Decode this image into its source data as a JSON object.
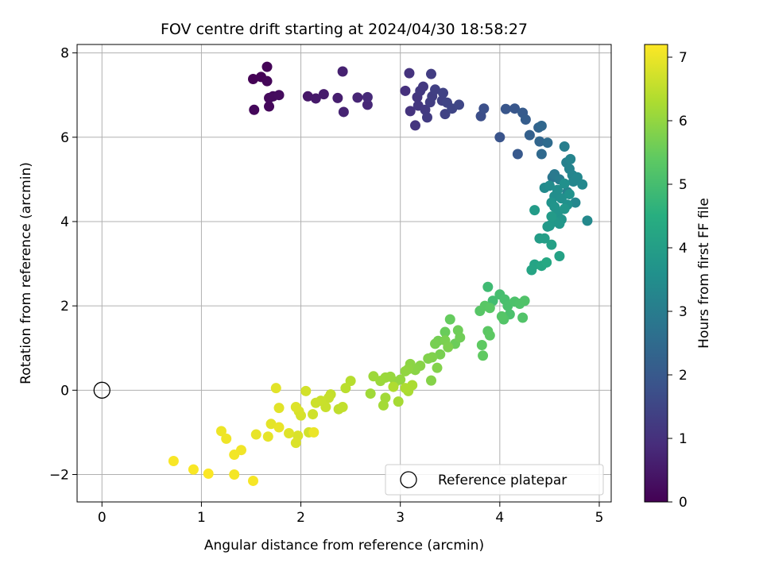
{
  "chart_data": {
    "type": "scatter",
    "title": "FOV centre drift starting at 2024/04/30 18:58:27",
    "xlabel": "Angular distance from reference (arcmin)",
    "ylabel": "Rotation from reference (arcmin)",
    "xlim": [
      -0.25,
      5.12
    ],
    "ylim": [
      -2.65,
      8.2
    ],
    "xticks": [
      0,
      1,
      2,
      3,
      4,
      5
    ],
    "yticks": [
      -2,
      0,
      2,
      4,
      6,
      8
    ],
    "xtick_labels": [
      "0",
      "1",
      "2",
      "3",
      "4",
      "5"
    ],
    "ytick_labels": [
      "−2",
      "0",
      "2",
      "4",
      "6",
      "8"
    ],
    "grid": true,
    "colormap": "viridis",
    "colorbar": {
      "label": "Hours from first FF file",
      "range": [
        0,
        7.2
      ],
      "ticks": [
        0,
        1,
        2,
        3,
        4,
        5,
        6,
        7
      ],
      "tick_labels": [
        "0",
        "1",
        "2",
        "3",
        "4",
        "5",
        "6",
        "7"
      ]
    },
    "legend": {
      "position": "lower-right",
      "label": "Reference platepar"
    },
    "reference_point": {
      "x": 0,
      "y": 0,
      "marker": "open-circle"
    },
    "points": [
      [
        1.52,
        7.38,
        0.02
      ],
      [
        1.6,
        7.43,
        0.05
      ],
      [
        1.66,
        7.67,
        0.08
      ],
      [
        1.66,
        7.33,
        0.1
      ],
      [
        1.53,
        6.65,
        0.13
      ],
      [
        1.68,
        6.73,
        0.15
      ],
      [
        1.68,
        6.93,
        0.18
      ],
      [
        1.72,
        6.97,
        0.2
      ],
      [
        1.78,
        7.0,
        0.23
      ],
      [
        2.07,
        6.97,
        0.45
      ],
      [
        2.15,
        6.92,
        0.5
      ],
      [
        2.23,
        7.02,
        0.55
      ],
      [
        2.37,
        6.93,
        0.6
      ],
      [
        2.42,
        7.56,
        0.65
      ],
      [
        2.43,
        6.6,
        0.7
      ],
      [
        2.57,
        6.94,
        0.75
      ],
      [
        2.67,
        6.77,
        0.8
      ],
      [
        2.67,
        6.95,
        0.85
      ],
      [
        3.05,
        7.1,
        1.0
      ],
      [
        3.09,
        7.52,
        1.05
      ],
      [
        3.1,
        6.62,
        1.08
      ],
      [
        3.15,
        6.28,
        1.1
      ],
      [
        3.17,
        6.95,
        1.12
      ],
      [
        3.18,
        6.75,
        1.15
      ],
      [
        3.2,
        7.1,
        1.18
      ],
      [
        3.23,
        7.2,
        1.2
      ],
      [
        3.25,
        6.65,
        1.22
      ],
      [
        3.27,
        6.47,
        1.25
      ],
      [
        3.3,
        6.83,
        1.28
      ],
      [
        3.31,
        7.5,
        1.3
      ],
      [
        3.32,
        6.97,
        1.32
      ],
      [
        3.35,
        7.13,
        1.35
      ],
      [
        3.42,
        6.87,
        1.38
      ],
      [
        3.43,
        7.05,
        1.4
      ],
      [
        3.45,
        6.55,
        1.42
      ],
      [
        3.47,
        6.82,
        1.45
      ],
      [
        3.52,
        6.68,
        1.48
      ],
      [
        3.59,
        6.77,
        1.5
      ],
      [
        3.81,
        6.5,
        1.7
      ],
      [
        3.84,
        6.68,
        1.75
      ],
      [
        4.0,
        6.0,
        1.85
      ],
      [
        4.06,
        6.67,
        1.9
      ],
      [
        4.15,
        6.68,
        1.95
      ],
      [
        4.18,
        5.6,
        2.0
      ],
      [
        4.23,
        6.58,
        2.05
      ],
      [
        4.26,
        6.42,
        2.1
      ],
      [
        4.3,
        6.05,
        2.2
      ],
      [
        4.39,
        6.23,
        2.3
      ],
      [
        4.4,
        5.9,
        2.35
      ],
      [
        4.42,
        6.27,
        2.4
      ],
      [
        4.42,
        5.6,
        2.45
      ],
      [
        4.48,
        5.87,
        2.5
      ],
      [
        4.53,
        5.05,
        2.8
      ],
      [
        4.55,
        5.12,
        2.9
      ],
      [
        4.6,
        5.0,
        3.0
      ],
      [
        4.65,
        5.78,
        3.05
      ],
      [
        4.67,
        5.4,
        3.1
      ],
      [
        4.68,
        4.7,
        3.15
      ],
      [
        4.7,
        5.25,
        3.2
      ],
      [
        4.71,
        5.48,
        3.22
      ],
      [
        4.73,
        5.1,
        3.25
      ],
      [
        4.74,
        4.95,
        3.28
      ],
      [
        4.76,
        4.45,
        3.3
      ],
      [
        4.78,
        5.05,
        3.32
      ],
      [
        4.83,
        4.88,
        3.35
      ],
      [
        4.88,
        4.02,
        3.38
      ],
      [
        4.45,
        4.8,
        3.4
      ],
      [
        4.5,
        4.85,
        3.45
      ],
      [
        4.55,
        4.6,
        3.5
      ],
      [
        4.58,
        4.75,
        3.52
      ],
      [
        4.62,
        4.55,
        3.55
      ],
      [
        4.65,
        4.9,
        3.58
      ],
      [
        4.68,
        4.4,
        3.6
      ],
      [
        4.7,
        4.65,
        3.62
      ],
      [
        4.52,
        4.45,
        3.65
      ],
      [
        4.55,
        4.35,
        3.68
      ],
      [
        4.58,
        4.2,
        3.7
      ],
      [
        4.62,
        4.05,
        3.72
      ],
      [
        4.65,
        4.3,
        3.75
      ],
      [
        4.6,
        3.95,
        3.78
      ],
      [
        4.55,
        4.0,
        3.8
      ],
      [
        4.5,
        3.9,
        3.82
      ],
      [
        4.48,
        3.88,
        3.85
      ],
      [
        4.52,
        4.12,
        3.88
      ],
      [
        4.35,
        4.27,
        3.9
      ],
      [
        4.4,
        3.6,
        3.95
      ],
      [
        4.45,
        3.6,
        4.0
      ],
      [
        4.52,
        3.45,
        4.05
      ],
      [
        4.6,
        3.18,
        4.1
      ],
      [
        4.35,
        2.98,
        4.15
      ],
      [
        4.32,
        2.85,
        4.2
      ],
      [
        4.42,
        2.95,
        4.25
      ],
      [
        4.47,
        3.03,
        4.3
      ],
      [
        3.88,
        2.45,
        4.9
      ],
      [
        3.93,
        2.12,
        4.95
      ],
      [
        4.0,
        2.27,
        5.0
      ],
      [
        4.05,
        2.15,
        5.05
      ],
      [
        4.08,
        2.0,
        5.08
      ],
      [
        4.1,
        1.8,
        5.1
      ],
      [
        4.15,
        2.1,
        5.12
      ],
      [
        4.2,
        2.05,
        5.15
      ],
      [
        4.25,
        2.12,
        5.18
      ],
      [
        4.23,
        1.72,
        5.2
      ],
      [
        4.04,
        1.68,
        5.22
      ],
      [
        4.02,
        1.75,
        5.25
      ],
      [
        3.8,
        1.88,
        5.28
      ],
      [
        3.85,
        2.0,
        5.3
      ],
      [
        3.9,
        1.95,
        5.32
      ],
      [
        3.88,
        1.4,
        5.35
      ],
      [
        3.9,
        1.3,
        5.38
      ],
      [
        3.82,
        1.07,
        5.4
      ],
      [
        3.83,
        0.82,
        5.42
      ],
      [
        3.5,
        1.68,
        5.48
      ],
      [
        3.45,
        1.38,
        5.52
      ],
      [
        3.55,
        1.1,
        5.55
      ],
      [
        3.58,
        1.42,
        5.58
      ],
      [
        3.6,
        1.25,
        5.6
      ],
      [
        3.38,
        1.17,
        5.65
      ],
      [
        3.35,
        1.1,
        5.68
      ],
      [
        3.4,
        0.85,
        5.7
      ],
      [
        3.45,
        1.18,
        5.72
      ],
      [
        3.48,
        1.02,
        5.75
      ],
      [
        3.32,
        0.78,
        5.78
      ],
      [
        3.28,
        0.75,
        5.8
      ],
      [
        3.37,
        0.53,
        5.82
      ],
      [
        3.31,
        0.23,
        5.85
      ],
      [
        3.2,
        0.58,
        5.88
      ],
      [
        3.15,
        0.48,
        5.9
      ],
      [
        3.1,
        0.62,
        5.92
      ],
      [
        3.08,
        0.5,
        5.95
      ],
      [
        3.05,
        0.45,
        5.98
      ],
      [
        3.0,
        0.25,
        6.0
      ],
      [
        2.95,
        0.2,
        6.02
      ],
      [
        2.9,
        0.32,
        6.05
      ],
      [
        2.85,
        0.3,
        6.08
      ],
      [
        2.8,
        0.22,
        6.1
      ],
      [
        2.73,
        0.33,
        6.12
      ],
      [
        2.7,
        -0.08,
        6.15
      ],
      [
        2.85,
        -0.18,
        6.18
      ],
      [
        2.83,
        -0.36,
        6.2
      ],
      [
        2.98,
        -0.27,
        6.22
      ],
      [
        3.08,
        -0.02,
        6.25
      ],
      [
        3.12,
        0.12,
        6.28
      ],
      [
        3.05,
        0.05,
        6.3
      ],
      [
        2.93,
        0.08,
        6.32
      ],
      [
        2.5,
        0.22,
        6.4
      ],
      [
        2.45,
        0.05,
        6.45
      ],
      [
        2.38,
        -0.45,
        6.5
      ],
      [
        2.42,
        -0.4,
        6.52
      ],
      [
        2.3,
        -0.1,
        6.55
      ],
      [
        2.28,
        -0.18,
        6.58
      ],
      [
        2.25,
        -0.4,
        6.6
      ],
      [
        2.2,
        -0.25,
        6.62
      ],
      [
        2.15,
        -0.3,
        6.65
      ],
      [
        2.12,
        -0.57,
        6.68
      ],
      [
        2.08,
        -1.0,
        6.7
      ],
      [
        2.05,
        -0.02,
        6.72
      ],
      [
        2.0,
        -0.6,
        6.75
      ],
      [
        1.98,
        -0.5,
        6.78
      ],
      [
        1.97,
        -1.08,
        6.8
      ],
      [
        1.95,
        -1.25,
        6.82
      ],
      [
        1.95,
        -0.4,
        6.84
      ],
      [
        1.88,
        -1.02,
        6.86
      ],
      [
        1.78,
        -0.42,
        6.88
      ],
      [
        1.75,
        0.05,
        6.9
      ],
      [
        1.7,
        -0.8,
        6.92
      ],
      [
        1.67,
        -1.1,
        6.94
      ],
      [
        1.55,
        -1.05,
        6.96
      ],
      [
        1.78,
        -0.88,
        6.98
      ],
      [
        2.13,
        -1.0,
        7.0
      ],
      [
        1.2,
        -0.97,
        7.02
      ],
      [
        1.25,
        -1.15,
        7.04
      ],
      [
        1.4,
        -1.42,
        7.06
      ],
      [
        1.33,
        -1.53,
        7.08
      ],
      [
        1.33,
        -2.0,
        7.1
      ],
      [
        1.52,
        -2.15,
        7.12
      ],
      [
        0.72,
        -1.68,
        7.14
      ],
      [
        0.92,
        -1.88,
        7.16
      ],
      [
        1.07,
        -1.98,
        7.18
      ]
    ]
  }
}
